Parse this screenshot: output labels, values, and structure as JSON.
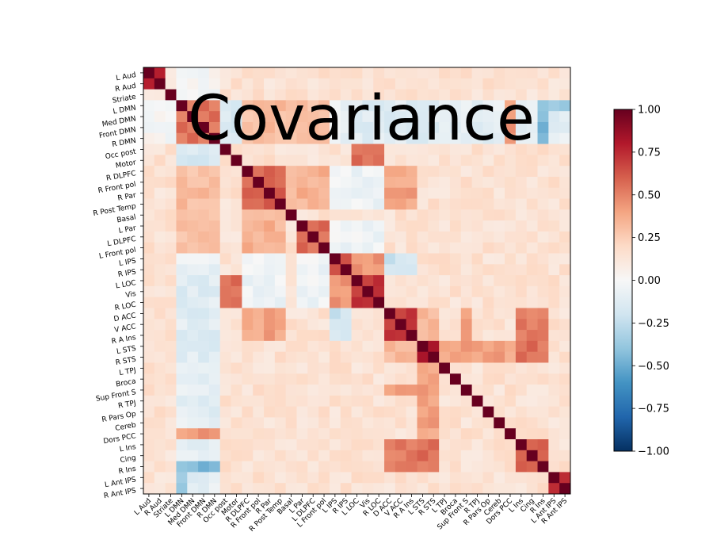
{
  "chart_data": {
    "type": "heatmap",
    "title": "Covariance",
    "labels": [
      "L Aud",
      "R Aud",
      "Striate",
      "L DMN",
      "Med DMN",
      "Front DMN",
      "R DMN",
      "Occ post",
      "Motor",
      "R DLPFC",
      "R Front pol",
      "R Par",
      "R Post Temp",
      "Basal",
      "L Par",
      "L DLPFC",
      "L Front pol",
      "L IPS",
      "R IPS",
      "L LOC",
      "Vis",
      "R LOC",
      "D ACC",
      "V ACC",
      "R A Ins",
      "L STS",
      "R STS",
      "L TPJ",
      "Broca",
      "Sup Front S",
      "R TPJ",
      "R Pars Op",
      "Cereb",
      "Dors PCC",
      "L Ins",
      "Cing",
      "R Ins",
      "L Ant IPS",
      "R Ant IPS"
    ],
    "colorbar": {
      "min": -1.0,
      "max": 1.0,
      "ticks": [
        "1.00",
        "0.75",
        "0.50",
        "0.25",
        "0.00",
        "−0.25",
        "−0.50",
        "−0.75",
        "−1.00"
      ],
      "tick_values": [
        1.0,
        0.75,
        0.5,
        0.25,
        0.0,
        -0.25,
        -0.5,
        -0.75,
        -1.0
      ],
      "colormap": "RdBu_r"
    },
    "base_value": 0.15,
    "block_values": [
      {
        "rows": [
          0,
          1
        ],
        "cols": [
          0,
          1
        ],
        "value": 0.82
      },
      {
        "rows": [
          3,
          6
        ],
        "cols": [
          3,
          6
        ],
        "value": 0.55
      },
      {
        "rows": [
          3,
          6
        ],
        "cols": [
          0,
          2
        ],
        "value": 0.0
      },
      {
        "rows": [
          3,
          6
        ],
        "cols": [
          7,
          8
        ],
        "value": -0.15
      },
      {
        "rows": [
          3,
          6
        ],
        "cols": [
          9,
          16
        ],
        "value": 0.3
      },
      {
        "rows": [
          3,
          6
        ],
        "cols": [
          17,
          21
        ],
        "value": -0.08
      },
      {
        "rows": [
          3,
          6
        ],
        "cols": [
          22,
          26
        ],
        "value": -0.12
      },
      {
        "rows": [
          3,
          6
        ],
        "cols": [
          27,
          38
        ],
        "value": -0.1
      },
      {
        "rows": [
          9,
          12
        ],
        "cols": [
          9,
          12
        ],
        "value": 0.6
      },
      {
        "rows": [
          9,
          12
        ],
        "cols": [
          13,
          16
        ],
        "value": 0.35
      },
      {
        "rows": [
          9,
          12
        ],
        "cols": [
          17,
          21
        ],
        "value": -0.05
      },
      {
        "rows": [
          9,
          12
        ],
        "cols": [
          22,
          24
        ],
        "value": 0.4
      },
      {
        "rows": [
          14,
          16
        ],
        "cols": [
          14,
          16
        ],
        "value": 0.55
      },
      {
        "rows": [
          14,
          16
        ],
        "cols": [
          17,
          21
        ],
        "value": -0.05
      },
      {
        "rows": [
          17,
          18
        ],
        "cols": [
          17,
          18
        ],
        "value": 0.65
      },
      {
        "rows": [
          17,
          21
        ],
        "cols": [
          19,
          21
        ],
        "value": 0.45
      },
      {
        "rows": [
          19,
          21
        ],
        "cols": [
          19,
          21
        ],
        "value": 0.72
      },
      {
        "rows": [
          17,
          18
        ],
        "cols": [
          22,
          24
        ],
        "value": -0.2
      },
      {
        "rows": [
          7,
          7
        ],
        "cols": [
          19,
          21
        ],
        "value": 0.62
      },
      {
        "rows": [
          19,
          21
        ],
        "cols": [
          3,
          6
        ],
        "value": -0.12
      },
      {
        "rows": [
          19,
          21
        ],
        "cols": [
          7,
          8
        ],
        "value": 0.55
      },
      {
        "rows": [
          22,
          24
        ],
        "cols": [
          22,
          24
        ],
        "value": 0.7
      },
      {
        "rows": [
          22,
          24
        ],
        "cols": [
          25,
          26
        ],
        "value": 0.3
      },
      {
        "rows": [
          25,
          26
        ],
        "cols": [
          25,
          26
        ],
        "value": 0.8
      },
      {
        "rows": [
          25,
          26
        ],
        "cols": [
          27,
          33
        ],
        "value": 0.4
      },
      {
        "rows": [
          25,
          26
        ],
        "cols": [
          34,
          36
        ],
        "value": 0.55
      },
      {
        "rows": [
          34,
          36
        ],
        "cols": [
          34,
          36
        ],
        "value": 0.62
      },
      {
        "rows": [
          34,
          36
        ],
        "cols": [
          22,
          24
        ],
        "value": 0.5
      },
      {
        "rows": [
          37,
          38
        ],
        "cols": [
          37,
          38
        ],
        "value": 0.75
      },
      {
        "rows": [
          29,
          29
        ],
        "cols": [
          22,
          24
        ],
        "value": 0.45
      },
      {
        "rows": [
          33,
          33
        ],
        "cols": [
          3,
          6
        ],
        "value": 0.42
      },
      {
        "rows": [
          36,
          36
        ],
        "cols": [
          3,
          6
        ],
        "value": -0.45
      },
      {
        "rows": [
          3,
          3
        ],
        "cols": [
          37,
          38
        ],
        "value": -0.4
      }
    ],
    "diagonal_value": 1.0,
    "grid": false
  }
}
